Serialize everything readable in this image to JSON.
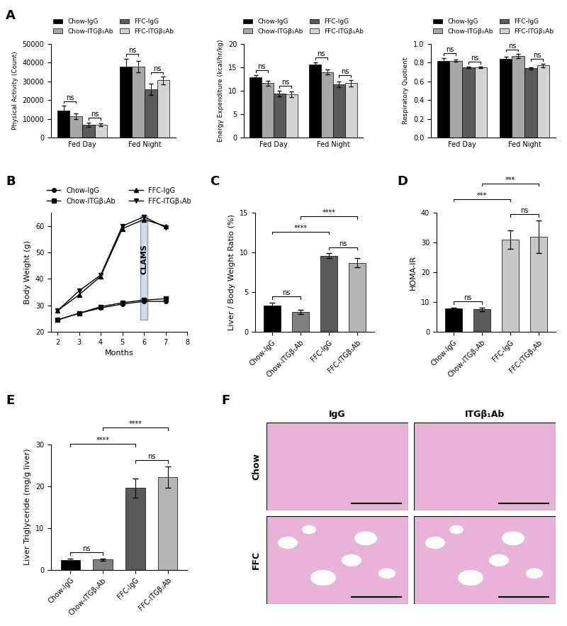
{
  "chart_data": [
    {
      "type": "bar",
      "panel_label": "A",
      "y_label": "Physical Activity (Count)",
      "categories": [
        "Fed Day",
        "Fed Night"
      ],
      "series": [
        {
          "name": "Chow-IgG",
          "color": "#000000",
          "values": [
            14500,
            38000
          ],
          "errors": [
            2500,
            4000
          ]
        },
        {
          "name": "Chow-ITGβ₁Ab",
          "color": "#a6a6a6",
          "values": [
            11500,
            38000
          ],
          "errors": [
            1500,
            3000
          ]
        },
        {
          "name": "FFC-IgG",
          "color": "#5a5a5a",
          "values": [
            6800,
            25700
          ],
          "errors": [
            1200,
            3000
          ]
        },
        {
          "name": "FFC-ITGβ₁Ab",
          "color": "#d4d4d4",
          "values": [
            6800,
            30500
          ],
          "errors": [
            700,
            2000
          ]
        }
      ],
      "ylim": [
        0,
        50000
      ],
      "yticks": [
        0,
        10000,
        20000,
        30000,
        40000,
        50000
      ],
      "legend": "upper center",
      "annotations": [
        {
          "category": "Fed Day",
          "from": "Chow-IgG",
          "to": "Chow-ITGβ₁Ab",
          "text": "ns"
        },
        {
          "category": "Fed Day",
          "from": "FFC-IgG",
          "to": "FFC-ITGβ₁Ab",
          "text": "ns"
        },
        {
          "category": "Fed Night",
          "from": "Chow-IgG",
          "to": "Chow-ITGβ₁Ab",
          "text": "ns"
        },
        {
          "category": "Fed Night",
          "from": "FFC-IgG",
          "to": "FFC-ITGβ₁Ab",
          "text": "ns"
        }
      ]
    },
    {
      "type": "bar",
      "y_label": "Energy Expenditure (kcal/hr/kg)",
      "categories": [
        "Fed Day",
        "Fed Night"
      ],
      "series": [
        {
          "name": "Chow-IgG",
          "color": "#000000",
          "values": [
            12.9,
            15.6
          ],
          "errors": [
            0.5,
            0.5
          ]
        },
        {
          "name": "Chow-ITGβ₁Ab",
          "color": "#a6a6a6",
          "values": [
            11.6,
            14.0
          ],
          "errors": [
            0.5,
            0.5
          ]
        },
        {
          "name": "FFC-IgG",
          "color": "#5a5a5a",
          "values": [
            9.4,
            11.3
          ],
          "errors": [
            0.6,
            0.6
          ]
        },
        {
          "name": "FFC-ITGβ₁Ab",
          "color": "#d4d4d4",
          "values": [
            9.2,
            11.6
          ],
          "errors": [
            0.6,
            0.7
          ]
        }
      ],
      "ylim": [
        0,
        20
      ],
      "yticks": [
        0,
        5,
        10,
        15,
        20
      ],
      "legend": "upper center",
      "annotations": [
        {
          "category": "Fed Day",
          "from": "Chow-IgG",
          "to": "Chow-ITGβ₁Ab",
          "text": "ns"
        },
        {
          "category": "Fed Day",
          "from": "FFC-IgG",
          "to": "FFC-ITGβ₁Ab",
          "text": "ns"
        },
        {
          "category": "Fed Night",
          "from": "Chow-IgG",
          "to": "Chow-ITGβ₁Ab",
          "text": "ns"
        },
        {
          "category": "Fed Night",
          "from": "FFC-IgG",
          "to": "FFC-ITGβ₁Ab",
          "text": "ns"
        }
      ]
    },
    {
      "type": "bar",
      "y_label": "Respiratory Quotient",
      "categories": [
        "Fed Day",
        "Fed Night"
      ],
      "series": [
        {
          "name": "Chow-IgG",
          "color": "#000000",
          "values": [
            0.82,
            0.84
          ],
          "errors": [
            0.03,
            0.02
          ]
        },
        {
          "name": "Chow-ITGβ₁Ab",
          "color": "#a6a6a6",
          "values": [
            0.82,
            0.87
          ],
          "errors": [
            0.01,
            0.02
          ]
        },
        {
          "name": "FFC-IgG",
          "color": "#5a5a5a",
          "values": [
            0.75,
            0.74
          ],
          "errors": [
            0.01,
            0.01
          ]
        },
        {
          "name": "FFC-ITGβ₁Ab",
          "color": "#d4d4d4",
          "values": [
            0.75,
            0.77
          ],
          "errors": [
            0.01,
            0.02
          ]
        }
      ],
      "ylim": [
        0,
        1.0
      ],
      "yticks": [
        {
          "value": 0,
          "label": "0.0"
        },
        {
          "value": 0.2,
          "label": "0.2"
        },
        {
          "value": 0.4,
          "label": "0.4"
        },
        {
          "value": 0.6,
          "label": "0.6"
        },
        {
          "value": 0.8,
          "label": "0.8"
        },
        {
          "value": 1.0,
          "label": "1.0"
        }
      ],
      "legend": "upper center",
      "annotations": [
        {
          "category": "Fed Day",
          "from": "Chow-IgG",
          "to": "Chow-ITGβ₁Ab",
          "text": "ns"
        },
        {
          "category": "Fed Day",
          "from": "FFC-IgG",
          "to": "FFC-ITGβ₁Ab",
          "text": "ns"
        },
        {
          "category": "Fed Night",
          "from": "Chow-IgG",
          "to": "Chow-ITGβ₁Ab",
          "text": "ns"
        },
        {
          "category": "Fed Night",
          "from": "FFC-IgG",
          "to": "FFC-ITGβ₁Ab",
          "text": "ns"
        }
      ]
    },
    {
      "type": "line",
      "panel_label": "B",
      "x_label": "Months",
      "y_label": "Body Weight (g)",
      "x": [
        2,
        3,
        4,
        5,
        6,
        7
      ],
      "series": [
        {
          "name": "Chow-IgG",
          "color": "#000000",
          "marker": "circle",
          "values": [
            24.5,
            27,
            29,
            30.5,
            31.5,
            31.5
          ]
        },
        {
          "name": "Chow-ITGβ₁Ab",
          "color": "#000000",
          "marker": "square",
          "values": [
            24.5,
            27,
            29.5,
            31,
            32,
            32.5
          ]
        },
        {
          "name": "FFC-IgG",
          "color": "#000000",
          "marker": "triangle_up",
          "values": [
            28,
            34,
            41,
            59,
            62.5,
            60
          ]
        },
        {
          "name": "FFC-ITGβ₁Ab",
          "color": "#000000",
          "marker": "triangle_down",
          "values": [
            28,
            35.5,
            41.5,
            60,
            63.5,
            59.5
          ]
        }
      ],
      "xlim": [
        1.7,
        8
      ],
      "xticks": [
        2,
        3,
        4,
        5,
        6,
        7,
        8
      ],
      "ylim": [
        20,
        65
      ],
      "yticks": [
        20,
        30,
        40,
        50,
        60
      ],
      "legend": "upper center",
      "annotations": [
        {
          "text": "CLAMS",
          "x": 6
        }
      ]
    },
    {
      "type": "bar",
      "panel_label": "C",
      "y_label": "Liver / Body Weight Ratio (%)",
      "categories": [
        "Chow-IgG",
        "Chow-ITGβ₁Ab",
        "FFC-IgG",
        "FFC-ITGβ₁Ab"
      ],
      "values": [
        3.3,
        2.5,
        9.6,
        8.7
      ],
      "errors": [
        0.4,
        0.3,
        0.3,
        0.6
      ],
      "colors": [
        "#000000",
        "#808080",
        "#5a5a5a",
        "#b4b4b4"
      ],
      "ylim": [
        0,
        15
      ],
      "yticks": [
        0,
        5,
        10,
        15
      ],
      "annotations": [
        {
          "from": "Chow-IgG",
          "to": "Chow-ITGβ₁Ab",
          "text": "ns"
        },
        {
          "from": "FFC-IgG",
          "to": "FFC-ITGβ₁Ab",
          "text": "ns"
        },
        {
          "from": "Chow-IgG",
          "to": "FFC-IgG",
          "text": "****"
        },
        {
          "from": "Chow-ITGβ₁Ab",
          "to": "FFC-ITGβ₁Ab",
          "text": "****"
        }
      ]
    },
    {
      "type": "bar",
      "panel_label": "D",
      "y_label": "HOMA-IR",
      "categories": [
        "Chow-IgG",
        "Chow-ITGβ₁Ab",
        "FFC-IgG",
        "FFC-ITGβ₁Ab"
      ],
      "values": [
        7.8,
        7.6,
        31,
        32
      ],
      "errors": [
        0.4,
        0.6,
        3,
        5.5
      ],
      "colors": [
        "#000000",
        "#5a5a5a",
        "#c8c8c8",
        "#c8c8c8"
      ],
      "ylim": [
        0,
        40
      ],
      "yticks": [
        0,
        10,
        20,
        30,
        40
      ],
      "annotations": [
        {
          "from": "Chow-IgG",
          "to": "Chow-ITGβ₁Ab",
          "text": "ns"
        },
        {
          "from": "FFC-IgG",
          "to": "FFC-ITGβ₁Ab",
          "text": "ns"
        },
        {
          "from": "Chow-IgG",
          "to": "FFC-IgG",
          "text": "***"
        },
        {
          "from": "Chow-ITGβ₁Ab",
          "to": "FFC-ITGβ₁Ab",
          "text": "***"
        }
      ]
    },
    {
      "type": "bar",
      "panel_label": "E",
      "y_label": "Liver Triglyceride (mg/g liver)",
      "categories": [
        "Chow-IgG",
        "Chow-ITGβ₁Ab",
        "FFC-IgG",
        "FFC-ITGβ₁Ab"
      ],
      "values": [
        2.3,
        2.4,
        19.6,
        22.2
      ],
      "errors": [
        0.3,
        0.2,
        2.3,
        2.5
      ],
      "colors": [
        "#000000",
        "#808080",
        "#5a5a5a",
        "#b4b4b4"
      ],
      "ylim": [
        0,
        30
      ],
      "yticks": [
        0,
        10,
        20,
        30
      ],
      "annotations": [
        {
          "from": "Chow-IgG",
          "to": "Chow-ITGβ₁Ab",
          "text": "ns"
        },
        {
          "from": "FFC-IgG",
          "to": "FFC-ITGβ₁Ab",
          "text": "ns"
        },
        {
          "from": "Chow-IgG",
          "to": "FFC-IgG",
          "text": "****"
        },
        {
          "from": "Chow-ITGβ₁Ab",
          "to": "FFC-ITGβ₁Ab",
          "text": "****"
        }
      ]
    }
  ],
  "image_grid": {
    "panel_label": "F",
    "columns": [
      "IgG",
      "ITGβ₁Ab"
    ],
    "rows": [
      "Chow",
      "FFC"
    ]
  }
}
